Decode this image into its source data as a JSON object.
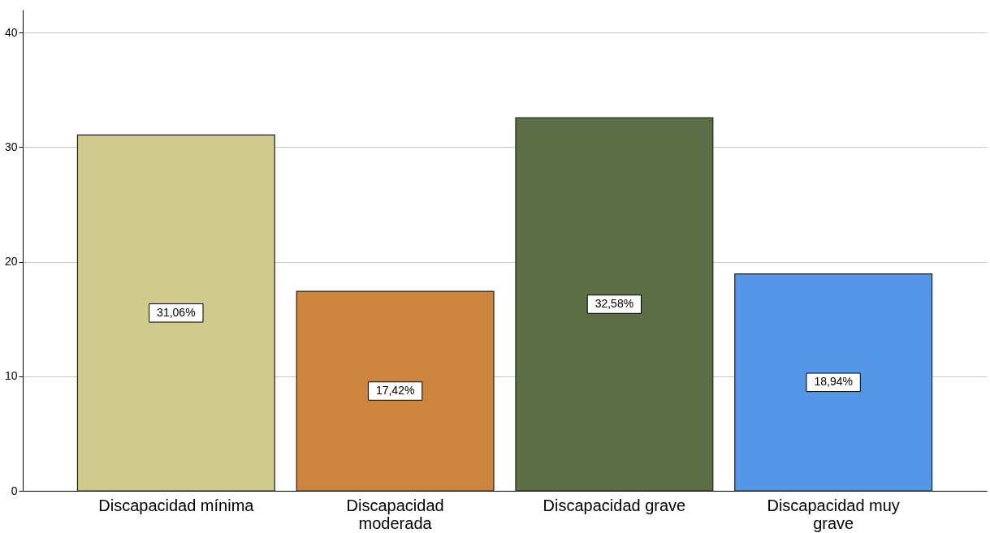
{
  "chart_data": {
    "type": "bar",
    "categories": [
      "Discapacidad mínima",
      "Discapacidad moderada",
      "Discapacidad grave",
      "Discapacidad muy grave"
    ],
    "values": [
      31.06,
      17.42,
      32.58,
      18.94
    ],
    "colors": [
      "#d0ca8e",
      "#cc853f",
      "#5b6e46",
      "#5596e6"
    ],
    "value_labels": [
      "31,06%",
      "17,42%",
      "32,58%",
      "18,94%"
    ],
    "ylim": [
      0,
      42
    ],
    "yticks": [
      0,
      10,
      20,
      30,
      40
    ],
    "grid": "y"
  }
}
